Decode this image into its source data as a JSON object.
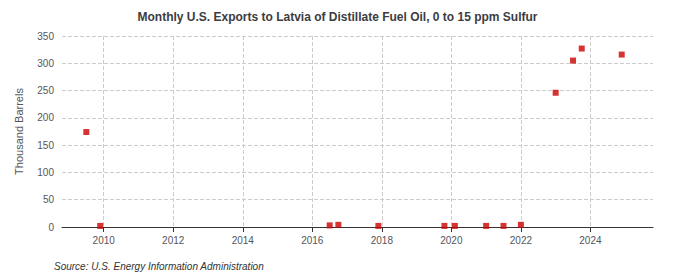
{
  "chart_data": {
    "type": "scatter",
    "title": "Monthly U.S. Exports to Latvia of Distillate Fuel Oil, 0 to 15 ppm Sulfur",
    "ylabel": "Thousand Barrels",
    "annotation": "Source: U.S. Energy Information Administration",
    "x": [
      2009.5,
      2009.9,
      2016.5,
      2016.75,
      2017.9,
      2019.8,
      2020.1,
      2021.0,
      2021.5,
      2022.0,
      2023.0,
      2023.5,
      2023.75,
      2024.9
    ],
    "values": [
      174,
      2,
      3,
      4,
      2,
      2,
      2,
      2,
      2,
      4,
      246,
      305,
      327,
      316
    ],
    "color": "#cc0000",
    "marker": "square",
    "xlim": [
      2008.8,
      2025.8
    ],
    "ylim": [
      0,
      350
    ],
    "xticks": [
      2010,
      2012,
      2014,
      2016,
      2018,
      2020,
      2022,
      2024
    ],
    "yticks": [
      0,
      50,
      100,
      150,
      200,
      250,
      300,
      350
    ],
    "grid": true
  }
}
